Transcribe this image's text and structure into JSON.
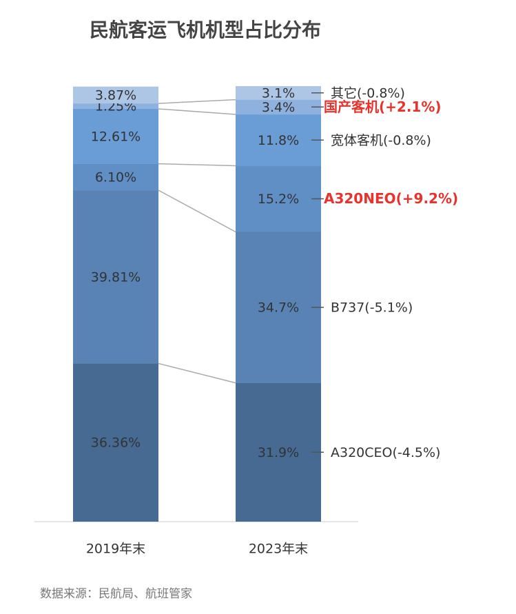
{
  "chart_data": {
    "type": "bar",
    "stacked": true,
    "title": "民航客运飞机机型占比分布",
    "source": "数据来源：民航局、航班管家",
    "categories": [
      "2019年末",
      "2023年末"
    ],
    "series": [
      {
        "name": "A320CEO(-4.5%)",
        "color": "#466a92",
        "highlight": false,
        "values": [
          36.36,
          31.9
        ],
        "value_labels": [
          "36.36%",
          "31.9%"
        ]
      },
      {
        "name": "B737(-5.1%)",
        "color": "#5883b4",
        "highlight": false,
        "values": [
          39.81,
          34.7
        ],
        "value_labels": [
          "39.81%",
          "34.7%"
        ]
      },
      {
        "name": "A320NEO(+9.2%)",
        "color": "#5f8fc5",
        "highlight": true,
        "values": [
          6.1,
          15.2
        ],
        "value_labels": [
          "6.10%",
          "15.2%"
        ]
      },
      {
        "name": "宽体客机(-0.8%)",
        "color": "#6a9dd5",
        "highlight": false,
        "values": [
          12.61,
          11.8
        ],
        "value_labels": [
          "12.61%",
          "11.8%"
        ]
      },
      {
        "name": "国产客机(+2.1%)",
        "color": "#8fb1dd",
        "highlight": true,
        "values": [
          1.25,
          3.4
        ],
        "value_labels": [
          "1.25%",
          "3.4%"
        ]
      },
      {
        "name": "其它(-0.8%)",
        "color": "#aec6e6",
        "highlight": false,
        "values": [
          3.87,
          3.1
        ],
        "value_labels": [
          "3.87%",
          "3.1%"
        ]
      }
    ]
  }
}
